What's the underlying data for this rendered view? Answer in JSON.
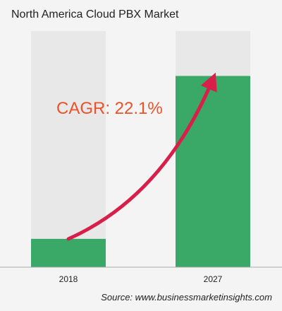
{
  "title": "North America Cloud PBX Market",
  "source": "Source: www.businessmarketinsights.com",
  "colors": {
    "background": "#f4f4f4",
    "bar_fill": "#3aa866",
    "bar_track": "#e8e8e8",
    "arrow": "#d81f4a",
    "cagr_text": "#e8532a",
    "axis": "#aaaaaa"
  },
  "chart_data": {
    "type": "bar",
    "title": "North America Cloud PBX Market",
    "categories": [
      "2018",
      "2027"
    ],
    "values": [
      12,
      81
    ],
    "ylim": [
      0,
      100
    ],
    "annotation": "CAGR: 22.1%",
    "xlabel": "",
    "ylabel": "",
    "grid": false,
    "legend": "none"
  }
}
